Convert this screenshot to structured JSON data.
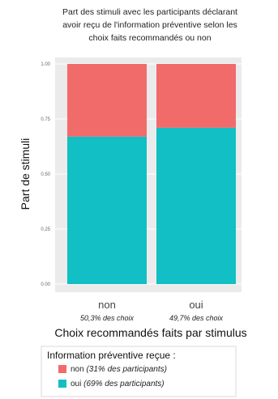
{
  "chart_data": {
    "type": "bar",
    "stacked": true,
    "title": [
      "Part des stimuli avec les participants déclarant",
      "avoir reçu de l'information préventive selon les",
      "choix faits recommandés ou non"
    ],
    "xlabel": "Choix recommandés faits par stimulus",
    "ylabel": "Part de stimuli",
    "ylim": [
      0,
      1
    ],
    "yticks": [
      "0.00",
      "0.25",
      "0.50",
      "0.75",
      "1.00"
    ],
    "categories": [
      "non",
      "oui"
    ],
    "category_notes": [
      "50,3% des choix",
      "49,7% des choix"
    ],
    "series": [
      {
        "name": "oui",
        "note": "(69% des participants)",
        "color": "#12bfc4",
        "values": [
          0.67,
          0.71
        ]
      },
      {
        "name": "non",
        "note": "(31% des participants)",
        "color": "#f26b6b",
        "values": [
          0.33,
          0.29
        ]
      }
    ],
    "legend_title": "Information préventive reçue :",
    "legend_position": "bottom",
    "grid": true,
    "panel_color": "#ebebeb"
  }
}
